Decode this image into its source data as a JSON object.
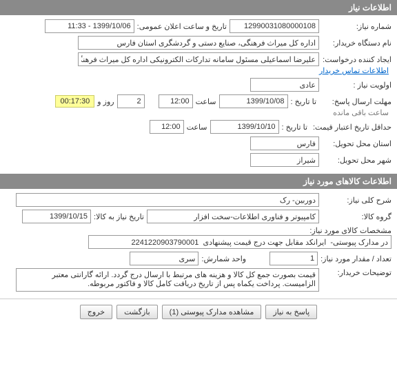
{
  "section1": {
    "title": "اطلاعات نیاز",
    "request_number_label": "شماره نیاز:",
    "request_number": "12990031080000108",
    "public_datetime_label": "تاریخ و ساعت اعلان عمومی:",
    "public_datetime": "1399/10/06 - 11:33",
    "buyer_org_label": "نام دستگاه خریدار:",
    "buyer_org": "اداره کل میراث فرهنگی، صنایع دستی و گردشگری استان فارس",
    "creator_label": "ایجاد کننده درخواست:",
    "creator": "علیرضا اسماعیلی مسئول سامانه تدارکات الکترونیکی اداره کل میراث فرهنگی، ص",
    "buyer_contact_link": "اطلاعات تماس خریدار",
    "priority_label": "اولویت نیاز :",
    "priority": "عادی",
    "deadline_label": "مهلت ارسال پاسخ:",
    "to_date_label": "تا تاریخ :",
    "deadline_date": "1399/10/08",
    "time_label": "ساعت",
    "deadline_time": "12:00",
    "days_value": "2",
    "days_suffix": "روز و",
    "countdown": "00:17:30",
    "remaining_label": "ساعت باقی مانده",
    "min_validity_label": "حداقل تاریخ اعتبار قیمت:",
    "min_validity_to": "تا تاریخ :",
    "min_validity_date": "1399/10/10",
    "min_validity_time": "12:00",
    "province_label": "استان محل تحویل:",
    "province": "فارس",
    "city_label": "شهر محل تحویل:",
    "city": "شیراز"
  },
  "section2": {
    "title": "اطلاعات کالاهای مورد نیاز",
    "general_desc_label": "شرح کلی نیاز:",
    "general_desc": "دوربین- رک",
    "goods_group_label": "گروه کالا:",
    "goods_group": "کامپیوتر و فناوری اطلاعات-سخت افزار",
    "need_until_label": "تاریخ نیاز به کالا:",
    "need_until": "1399/10/15",
    "goods_spec_label": "مشخصات کالای مورد نیاز:",
    "goods_spec": "در مدارک پیوستی-  ایرانکد مقابل جهت درج قیمت پیشنهادی  2241220903790001",
    "qty_label": "تعداد / مقدار مورد نیاز:",
    "qty": "1",
    "unit_label": "واحد شمارش:",
    "unit": "سری",
    "buyer_notes_label": "توضیحات خریدار:",
    "buyer_notes": "قیمت بصورت جمع کل کالا و هزینه های مرتبط با ارسال درج گردد. ارائه گارانتی معتبر الزامیست. پرداخت یکماه پس از تاریخ دریافت کامل کالا و فاکتور مربوطه."
  },
  "buttons": {
    "respond": "پاسخ به نیاز",
    "view_attachments": "مشاهده مدارک پیوستی (1)",
    "back": "بازگشت",
    "exit": "خروج"
  }
}
